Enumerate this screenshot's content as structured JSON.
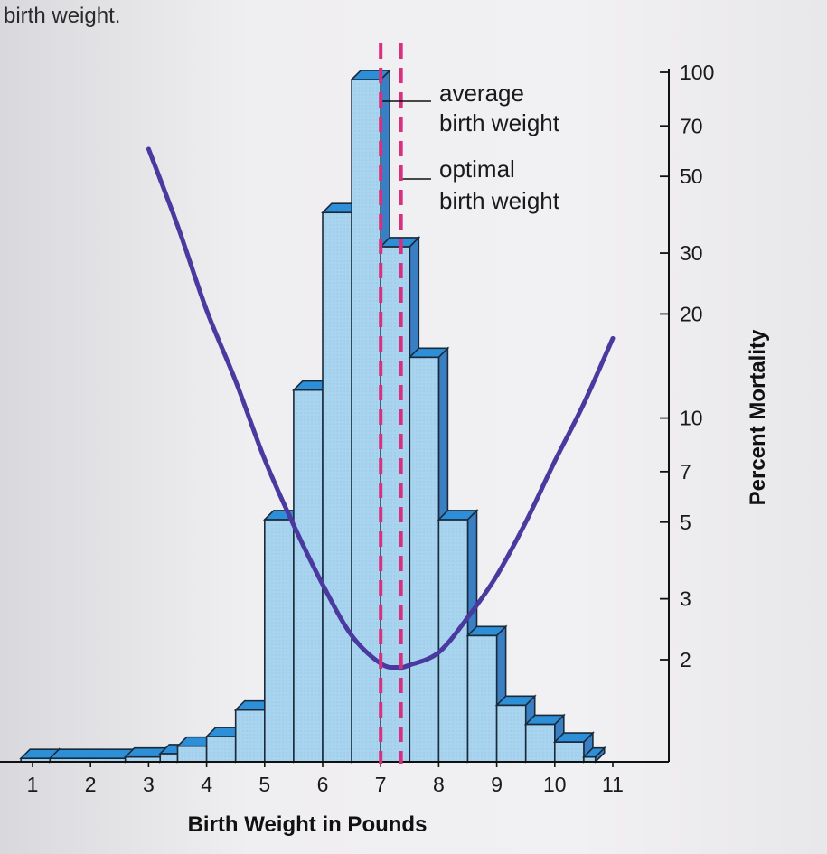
{
  "caption_fragment": "birth weight.",
  "chart_data": {
    "type": "bar",
    "title": "",
    "xlabel": "Birth Weight in Pounds",
    "ylabel": "Percent Mortality",
    "x_ticks": [
      "1",
      "2",
      "3",
      "4",
      "5",
      "6",
      "7",
      "8",
      "9",
      "10",
      "11"
    ],
    "xlim": [
      0.7,
      11.2
    ],
    "y_scale": "log",
    "y_ticks": [
      "2",
      "3",
      "5",
      "7",
      "10",
      "20",
      "30",
      "50",
      "70",
      "100"
    ],
    "ylim": [
      1.3,
      100
    ],
    "distribution": {
      "bin_edges": [
        0.8,
        1.3,
        2.6,
        3.2,
        3.5,
        4.0,
        4.5,
        5.0,
        5.5,
        6.0,
        6.5,
        7.0,
        7.5,
        8.0,
        8.5,
        9.0,
        9.5,
        10.0,
        10.5,
        10.7
      ],
      "relative_heights": [
        0.5,
        0.5,
        0.7,
        1.2,
        2.3,
        3.7,
        7.6,
        35.5,
        54.5,
        80.5,
        100,
        75.5,
        59.3,
        35.5,
        18.5,
        8.3,
        5.5,
        2.9,
        0.7
      ]
    },
    "mortality_curve": {
      "x": [
        3.0,
        3.5,
        4.0,
        4.5,
        5.0,
        5.5,
        6.0,
        6.5,
        7.0,
        7.3,
        7.5,
        8.0,
        8.5,
        9.0,
        9.5,
        10.0,
        10.5,
        11.0
      ],
      "y": [
        60,
        36,
        20.5,
        12.8,
        7.6,
        4.9,
        3.3,
        2.35,
        1.95,
        1.9,
        1.93,
        2.1,
        2.65,
        3.5,
        5.0,
        7.5,
        11,
        17
      ]
    },
    "markers": [
      {
        "label_line1": "average",
        "label_line2": "birth weight",
        "x": 7.0,
        "color": "#d8307f"
      },
      {
        "label_line1": "optimal",
        "label_line2": "birth weight",
        "x": 7.35,
        "color": "#d8307f"
      }
    ],
    "colors": {
      "bar_face": "#a8d4ef",
      "bar_top": "#2c8fd8",
      "bar_side": "#3a7fc4",
      "curve": "#4a3aa0",
      "marker": "#d8307f"
    }
  }
}
